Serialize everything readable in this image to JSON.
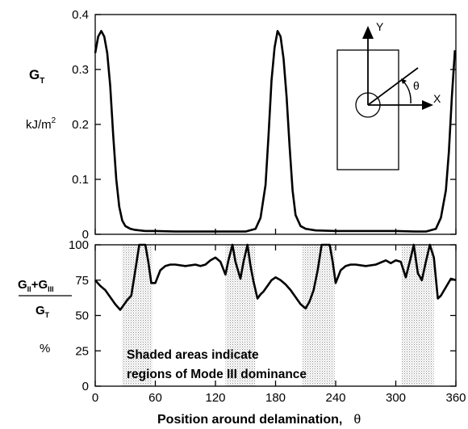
{
  "chart_data": [
    {
      "type": "line",
      "ylabel_symbol": "G",
      "ylabel_subscript": "T",
      "ylabel_unit": "kJ/m",
      "ylabel_unit_sup": "2",
      "xlim": [
        0,
        360
      ],
      "ylim": [
        0,
        0.4
      ],
      "yticks": [
        0,
        0.1,
        0.2,
        0.3,
        0.4
      ],
      "ytick_labels": [
        "0",
        "0.1",
        "0.2",
        "0.3",
        "0.4"
      ],
      "grid": false,
      "series": [
        {
          "x": [
            0,
            3,
            6,
            9,
            12,
            15,
            18,
            21,
            24,
            27,
            30,
            35,
            40,
            50,
            60,
            80,
            100,
            120,
            140,
            150,
            160,
            165,
            170,
            173,
            176,
            179,
            182,
            185,
            188,
            191,
            194,
            197,
            200,
            205,
            210,
            220,
            240,
            260,
            280,
            300,
            320,
            330,
            340,
            345,
            350,
            353,
            356,
            359
          ],
          "y": [
            0.33,
            0.36,
            0.37,
            0.36,
            0.33,
            0.27,
            0.18,
            0.1,
            0.05,
            0.025,
            0.015,
            0.01,
            0.008,
            0.006,
            0.006,
            0.005,
            0.005,
            0.005,
            0.005,
            0.005,
            0.01,
            0.03,
            0.09,
            0.18,
            0.28,
            0.34,
            0.37,
            0.36,
            0.32,
            0.25,
            0.16,
            0.08,
            0.035,
            0.015,
            0.01,
            0.007,
            0.006,
            0.006,
            0.006,
            0.006,
            0.005,
            0.005,
            0.01,
            0.03,
            0.08,
            0.15,
            0.25,
            0.335
          ]
        }
      ],
      "inset": {
        "y_label": "Y",
        "x_label": "X",
        "angle_label": "θ"
      }
    },
    {
      "type": "line",
      "ylabel_numerator_parts": [
        "G",
        "II",
        "+G",
        "III"
      ],
      "ylabel_denominator_parts": [
        "G",
        "T"
      ],
      "ylabel_unit": "%",
      "xlabel": "Position around delamination,",
      "xlabel_symbol": "θ",
      "xlim": [
        0,
        360
      ],
      "ylim": [
        0,
        100
      ],
      "xticks": [
        0,
        60,
        120,
        180,
        240,
        300,
        360
      ],
      "xtick_labels": [
        "0",
        "60",
        "120",
        "180",
        "240",
        "300",
        "360"
      ],
      "yticks": [
        0,
        25,
        50,
        75,
        100
      ],
      "ytick_labels": [
        "0",
        "25",
        "50",
        "75",
        "100"
      ],
      "grid": false,
      "shaded_regions": [
        [
          27,
          57
        ],
        [
          130,
          160
        ],
        [
          207,
          239
        ],
        [
          306,
          338
        ]
      ],
      "annotation_lines": [
        "Shaded areas indicate",
        "regions of Mode III dominance"
      ],
      "series": [
        {
          "x": [
            0,
            5,
            10,
            15,
            20,
            25,
            28,
            32,
            36,
            40,
            44,
            47,
            50,
            53,
            56,
            60,
            65,
            70,
            75,
            80,
            90,
            100,
            105,
            110,
            115,
            120,
            125,
            130,
            133,
            137,
            140,
            145,
            148,
            152,
            155,
            158,
            162,
            165,
            168,
            172,
            176,
            180,
            185,
            190,
            195,
            200,
            205,
            210,
            214,
            218,
            222,
            226,
            230,
            234,
            237,
            240,
            245,
            250,
            255,
            260,
            270,
            280,
            290,
            295,
            300,
            305,
            310,
            315,
            318,
            322,
            326,
            330,
            334,
            338,
            342,
            345,
            350,
            355,
            360
          ],
          "y": [
            75,
            71,
            68,
            63,
            58,
            54,
            57,
            61,
            64,
            82,
            100,
            100,
            100,
            88,
            73,
            73,
            82,
            85,
            86,
            86,
            85,
            86,
            85,
            86,
            89,
            91,
            88,
            79,
            89,
            100,
            88,
            76,
            88,
            100,
            85,
            74,
            62,
            65,
            67,
            71,
            75,
            77,
            75,
            72,
            68,
            63,
            58,
            55,
            60,
            68,
            82,
            100,
            100,
            100,
            88,
            73,
            82,
            85,
            86,
            86,
            85,
            86,
            89,
            87,
            89,
            88,
            77,
            91,
            100,
            80,
            75,
            88,
            100,
            91,
            62,
            64,
            70,
            76,
            75
          ]
        }
      ]
    }
  ]
}
